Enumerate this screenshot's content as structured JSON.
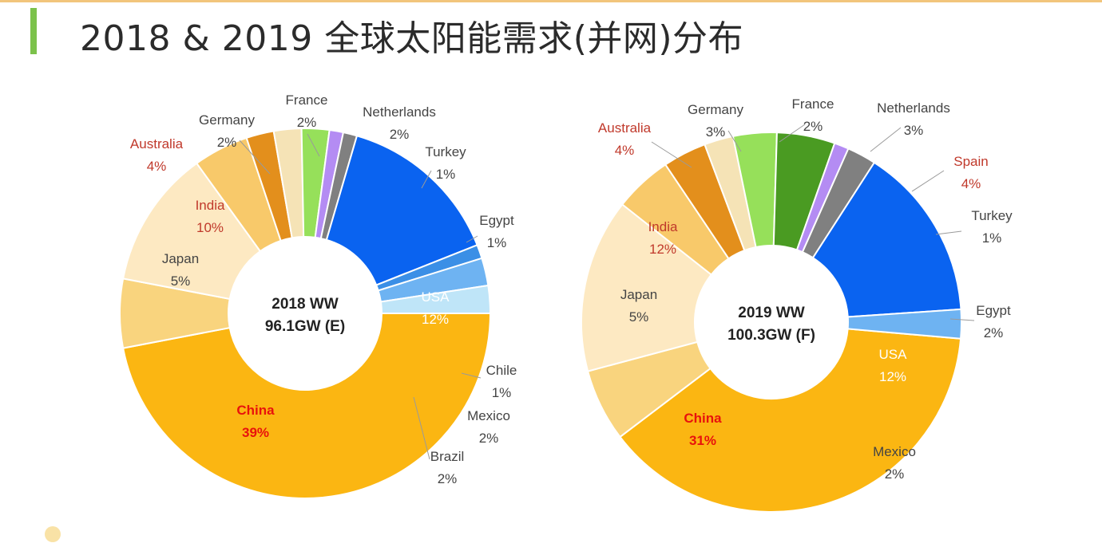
{
  "title": "2018 & 2019 全球太阳能需求(并网)分布",
  "chart_data": [
    {
      "type": "pie",
      "subtype": "donut",
      "center_lines": [
        "2018 WW",
        "96.1GW (E)"
      ],
      "colors": {
        "China": "#fbb612",
        "USA": "#0a63f0",
        "Japan": "#f9d47e",
        "India": "#fde9c2",
        "Australia": "#f8c96a",
        "Germany": "#e38f1c",
        "France": "#f5e3b6",
        "Netherlands": "#96e05a",
        "Turkey": "#b48cf3",
        "Egypt": "#808080",
        "Chile": "#3b8fe6",
        "Mexico": "#6eb3f2",
        "Brazil": "#bfe5f8"
      },
      "slices": [
        {
          "name": "China",
          "value": 39,
          "label": "39%",
          "highlight": true
        },
        {
          "name": "Japan",
          "value": 5,
          "label": "5%",
          "highlight": false
        },
        {
          "name": "India",
          "value": 10,
          "label": "10%",
          "highlight": true
        },
        {
          "name": "Australia",
          "value": 4,
          "label": "4%",
          "highlight": true
        },
        {
          "name": "Germany",
          "value": 2,
          "label": "2%",
          "highlight": false
        },
        {
          "name": "France",
          "value": 2,
          "label": "2%",
          "highlight": false
        },
        {
          "name": "Netherlands",
          "value": 2,
          "label": "2%",
          "highlight": false
        },
        {
          "name": "Turkey",
          "value": 1,
          "label": "1%",
          "highlight": false
        },
        {
          "name": "Egypt",
          "value": 1,
          "label": "1%",
          "highlight": false
        },
        {
          "name": "USA",
          "value": 12,
          "label": "12%",
          "highlight": false
        },
        {
          "name": "Chile",
          "value": 1,
          "label": "1%",
          "highlight": false
        },
        {
          "name": "Mexico",
          "value": 2,
          "label": "2%",
          "highlight": false
        },
        {
          "name": "Brazil",
          "value": 2,
          "label": "2%",
          "highlight": false
        }
      ]
    },
    {
      "type": "pie",
      "subtype": "donut",
      "center_lines": [
        "2019 WW",
        "100.3GW (F)"
      ],
      "colors": {
        "China": "#fbb612",
        "USA": "#0a63f0",
        "Japan": "#f9d47e",
        "India": "#fde9c2",
        "Australia": "#f8c96a",
        "Germany": "#e38f1c",
        "France": "#f5e3b6",
        "Netherlands": "#96e05a",
        "Spain": "#4a9b22",
        "Turkey": "#b48cf3",
        "Egypt": "#808080",
        "Mexico": "#6eb3f2"
      },
      "slices": [
        {
          "name": "China",
          "value": 31,
          "label": "31%",
          "highlight": true
        },
        {
          "name": "Japan",
          "value": 5,
          "label": "5%",
          "highlight": false
        },
        {
          "name": "India",
          "value": 12,
          "label": "12%",
          "highlight": true
        },
        {
          "name": "Australia",
          "value": 4,
          "label": "4%",
          "highlight": true
        },
        {
          "name": "Germany",
          "value": 3,
          "label": "3%",
          "highlight": false
        },
        {
          "name": "France",
          "value": 2,
          "label": "2%",
          "highlight": false
        },
        {
          "name": "Netherlands",
          "value": 3,
          "label": "3%",
          "highlight": false
        },
        {
          "name": "Spain",
          "value": 4,
          "label": "4%",
          "highlight": true
        },
        {
          "name": "Turkey",
          "value": 1,
          "label": "1%",
          "highlight": false
        },
        {
          "name": "Egypt",
          "value": 2,
          "label": "2%",
          "highlight": false
        },
        {
          "name": "USA",
          "value": 12,
          "label": "12%",
          "highlight": false
        },
        {
          "name": "Mexico",
          "value": 2,
          "label": "2%",
          "highlight": false
        }
      ]
    }
  ]
}
